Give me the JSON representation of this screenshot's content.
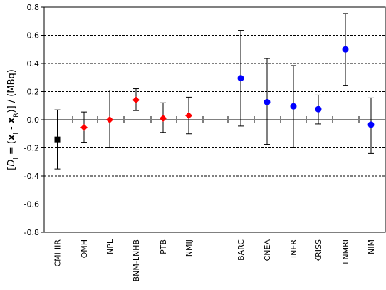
{
  "chart_data": {
    "type": "scatter",
    "ylabel_parts": [
      "[",
      "D",
      "i",
      " = (",
      "x",
      "i",
      " - ",
      "x",
      "R",
      ")] / (MBq)"
    ],
    "ylim": [
      -0.8,
      0.8
    ],
    "yticks": [
      "-0.8",
      "-0.6",
      "-0.4",
      "-0.2",
      "0.0",
      "0.2",
      "0.4",
      "0.6",
      "0.8"
    ],
    "ytick_values": [
      -0.8,
      -0.6,
      -0.4,
      -0.2,
      0.0,
      0.2,
      0.4,
      0.6,
      0.8
    ],
    "grid": "horizontal dashed",
    "zero_line_color": "#808080",
    "points": [
      {
        "label": "CMI-IIR",
        "y": -0.14,
        "low": -0.35,
        "high": 0.07,
        "marker": "square",
        "color": "#000000"
      },
      {
        "label": "OMH",
        "y": -0.055,
        "low": -0.16,
        "high": 0.055,
        "marker": "diamond",
        "color": "#ff0000"
      },
      {
        "label": "NPL",
        "y": 0.0,
        "low": -0.2,
        "high": 0.21,
        "marker": "diamond",
        "color": "#ff0000"
      },
      {
        "label": "BNM-LNHB",
        "y": 0.14,
        "low": 0.065,
        "high": 0.22,
        "marker": "diamond",
        "color": "#ff0000"
      },
      {
        "label": "PTB",
        "y": 0.01,
        "low": -0.09,
        "high": 0.12,
        "marker": "diamond",
        "color": "#ff0000"
      },
      {
        "label": "NMIJ",
        "y": 0.03,
        "low": -0.1,
        "high": 0.16,
        "marker": "diamond",
        "color": "#ff0000"
      },
      {
        "label": "BARC",
        "y": 0.295,
        "low": -0.045,
        "high": 0.635,
        "marker": "circle",
        "color": "#0000ff"
      },
      {
        "label": "CNEA",
        "y": 0.125,
        "low": -0.175,
        "high": 0.435,
        "marker": "circle",
        "color": "#0000ff"
      },
      {
        "label": "INER",
        "y": 0.095,
        "low": -0.2,
        "high": 0.385,
        "marker": "circle",
        "color": "#0000ff"
      },
      {
        "label": "KRISS",
        "y": 0.075,
        "low": -0.03,
        "high": 0.175,
        "marker": "circle",
        "color": "#0000ff"
      },
      {
        "label": "LNMRI",
        "y": 0.5,
        "low": 0.245,
        "high": 0.755,
        "marker": "circle",
        "color": "#0000ff"
      },
      {
        "label": "NIM",
        "y": -0.035,
        "low": -0.24,
        "high": 0.155,
        "marker": "circle",
        "color": "#0000ff"
      }
    ]
  }
}
